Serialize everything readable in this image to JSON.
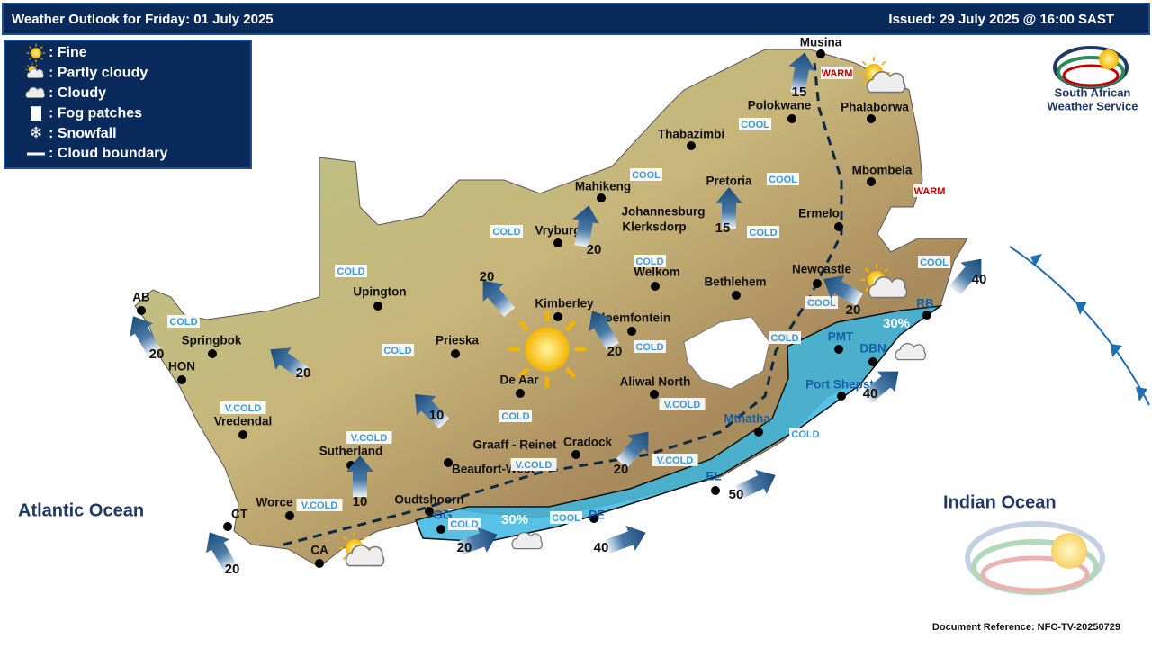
{
  "header": {
    "title": "Weather Outlook for Friday: 01 July 2025",
    "issued": "Issued: 29 July 2025 @ 16:00 SAST"
  },
  "legend": [
    ": Fine",
    ": Partly cloudy",
    ": Cloudy",
    ": Fog patches",
    ": Snowfall",
    ": Cloud boundary"
  ],
  "logo": {
    "line1": "South African",
    "line2": "Weather Service"
  },
  "cities": [
    "Musina",
    "Polokwane",
    "Phalaborwa",
    "Thabazimbi",
    "Mbombela",
    "Mahikeng",
    "Pretoria",
    "Johannesburg",
    "Klerksdorp",
    "Vryburg",
    "Ermelo",
    "Upington",
    "Kimberley",
    "Welkom",
    "Bethlehem",
    "Newcastle",
    "AB",
    "Springbok",
    "HON",
    "Prieska",
    "Bloemfontein",
    "De Aar",
    "Aliwal North",
    "PMT",
    "DBN",
    "Port Shepstone",
    "Vredendal",
    "Sutherland",
    "Graaff - Reinet",
    "Cradock",
    "Beaufort-West",
    "Mthatha",
    "EL",
    "Oudtshoorn",
    "Worce",
    "CT",
    "CA",
    "GG",
    "PE",
    "RB"
  ],
  "temperature_labels": [
    "WARM",
    "COOL",
    "COOL",
    "COOL",
    "WARM",
    "COLD",
    "COLD",
    "COLD",
    "COOL",
    "COLD",
    "COOL",
    "COLD",
    "COLD",
    "COLD",
    "COLD",
    "V.COLD",
    "V.COLD",
    "COLD",
    "V.COLD",
    "COLD",
    "V.COLD",
    "V.COLD",
    "COOL",
    "COLD",
    "V.COLD"
  ],
  "wind_speeds": [
    15,
    15,
    20,
    20,
    20,
    20,
    20,
    10,
    10,
    20,
    20,
    40,
    40,
    50,
    40,
    20,
    20
  ],
  "rain_chance": [
    "30%",
    "30%"
  ],
  "oceans": [
    "Atlantic Ocean",
    "Indian Ocean"
  ],
  "footer": "Document Reference: NFC-TV-20250729"
}
